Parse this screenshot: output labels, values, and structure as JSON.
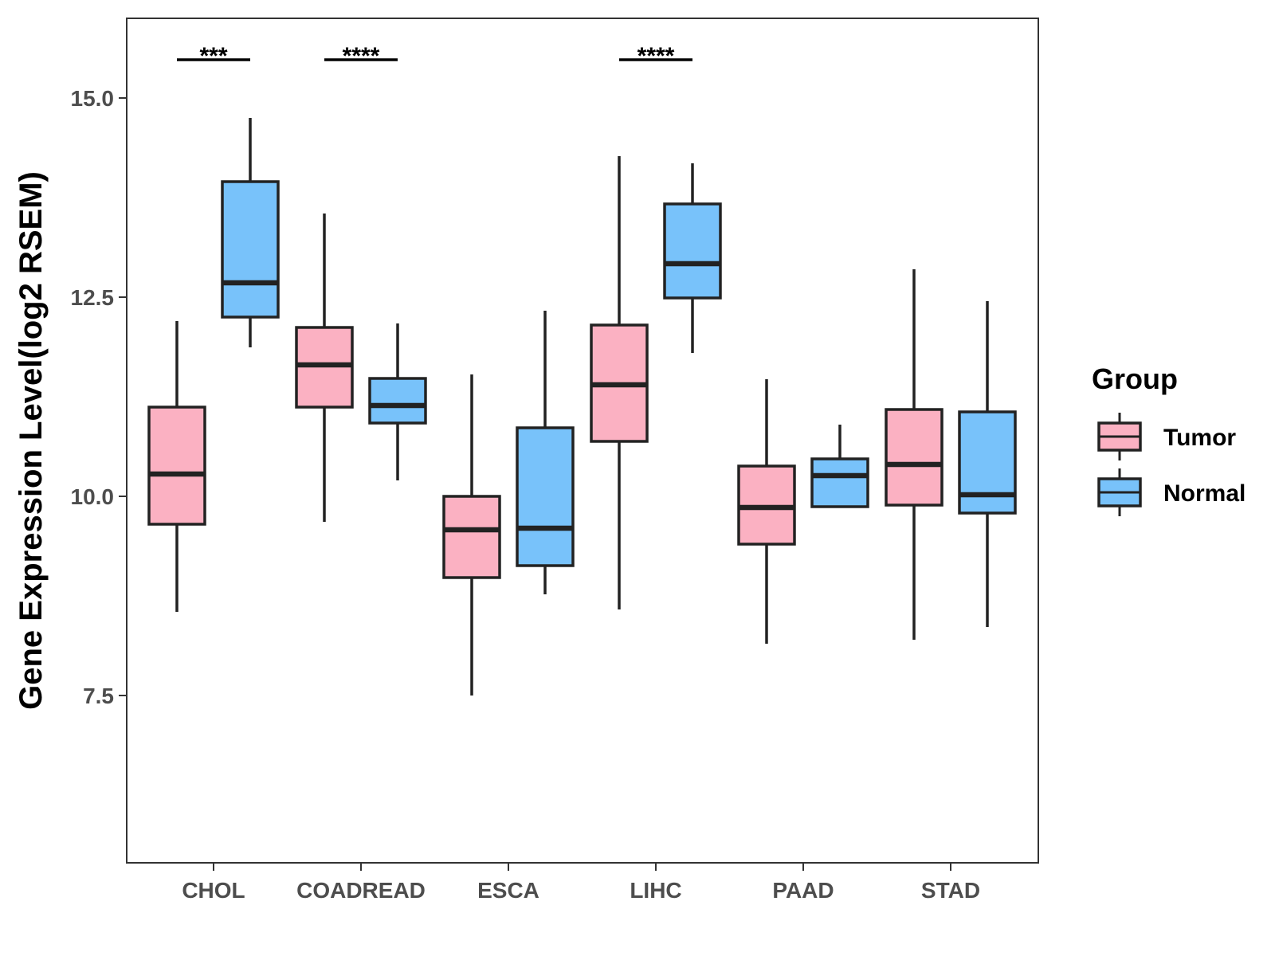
{
  "chart_data": {
    "type": "boxplot",
    "title": "",
    "xlabel": "",
    "ylabel": "Gene Expression Level(log2 RSEM)",
    "ylim": [
      5.4,
      16.0
    ],
    "yticks": [
      7.5,
      10.0,
      12.5,
      15.0
    ],
    "ytick_labels": [
      "7.5",
      "10.0",
      "12.5",
      "15.0"
    ],
    "categories": [
      "CHOL",
      "COADREAD",
      "ESCA",
      "LIHC",
      "PAAD",
      "STAD"
    ],
    "legend": {
      "title": "Group",
      "position": "right",
      "entries": [
        "Tumor",
        "Normal"
      ]
    },
    "series": [
      {
        "name": "Tumor",
        "color": "#fbb1c2",
        "stats": [
          {
            "min": 8.55,
            "q1": 9.65,
            "median": 10.28,
            "q3": 11.12,
            "max": 12.2
          },
          {
            "min": 9.68,
            "q1": 11.12,
            "median": 11.65,
            "q3": 12.12,
            "max": 13.55
          },
          {
            "min": 7.5,
            "q1": 8.98,
            "median": 9.58,
            "q3": 10.0,
            "max": 11.53
          },
          {
            "min": 8.58,
            "q1": 10.69,
            "median": 11.4,
            "q3": 12.15,
            "max": 14.27
          },
          {
            "min": 8.15,
            "q1": 9.4,
            "median": 9.86,
            "q3": 10.38,
            "max": 11.47
          },
          {
            "min": 8.2,
            "q1": 9.89,
            "median": 10.4,
            "q3": 11.09,
            "max": 12.85
          }
        ]
      },
      {
        "name": "Normal",
        "color": "#78c2fa",
        "stats": [
          {
            "min": 11.87,
            "q1": 12.25,
            "median": 12.68,
            "q3": 13.95,
            "max": 14.75
          },
          {
            "min": 10.2,
            "q1": 10.92,
            "median": 11.14,
            "q3": 11.48,
            "max": 12.17
          },
          {
            "min": 8.77,
            "q1": 9.13,
            "median": 9.6,
            "q3": 10.86,
            "max": 12.33
          },
          {
            "min": 11.8,
            "q1": 12.49,
            "median": 12.92,
            "q3": 13.67,
            "max": 14.18
          },
          {
            "min": 9.87,
            "q1": 9.87,
            "median": 10.26,
            "q3": 10.47,
            "max": 10.9
          },
          {
            "min": 8.36,
            "q1": 9.79,
            "median": 10.02,
            "q3": 11.06,
            "max": 12.45
          }
        ]
      }
    ],
    "significance": [
      {
        "category": "CHOL",
        "label": "***"
      },
      {
        "category": "COADREAD",
        "label": "****"
      },
      {
        "category": "LIHC",
        "label": "****"
      }
    ]
  }
}
